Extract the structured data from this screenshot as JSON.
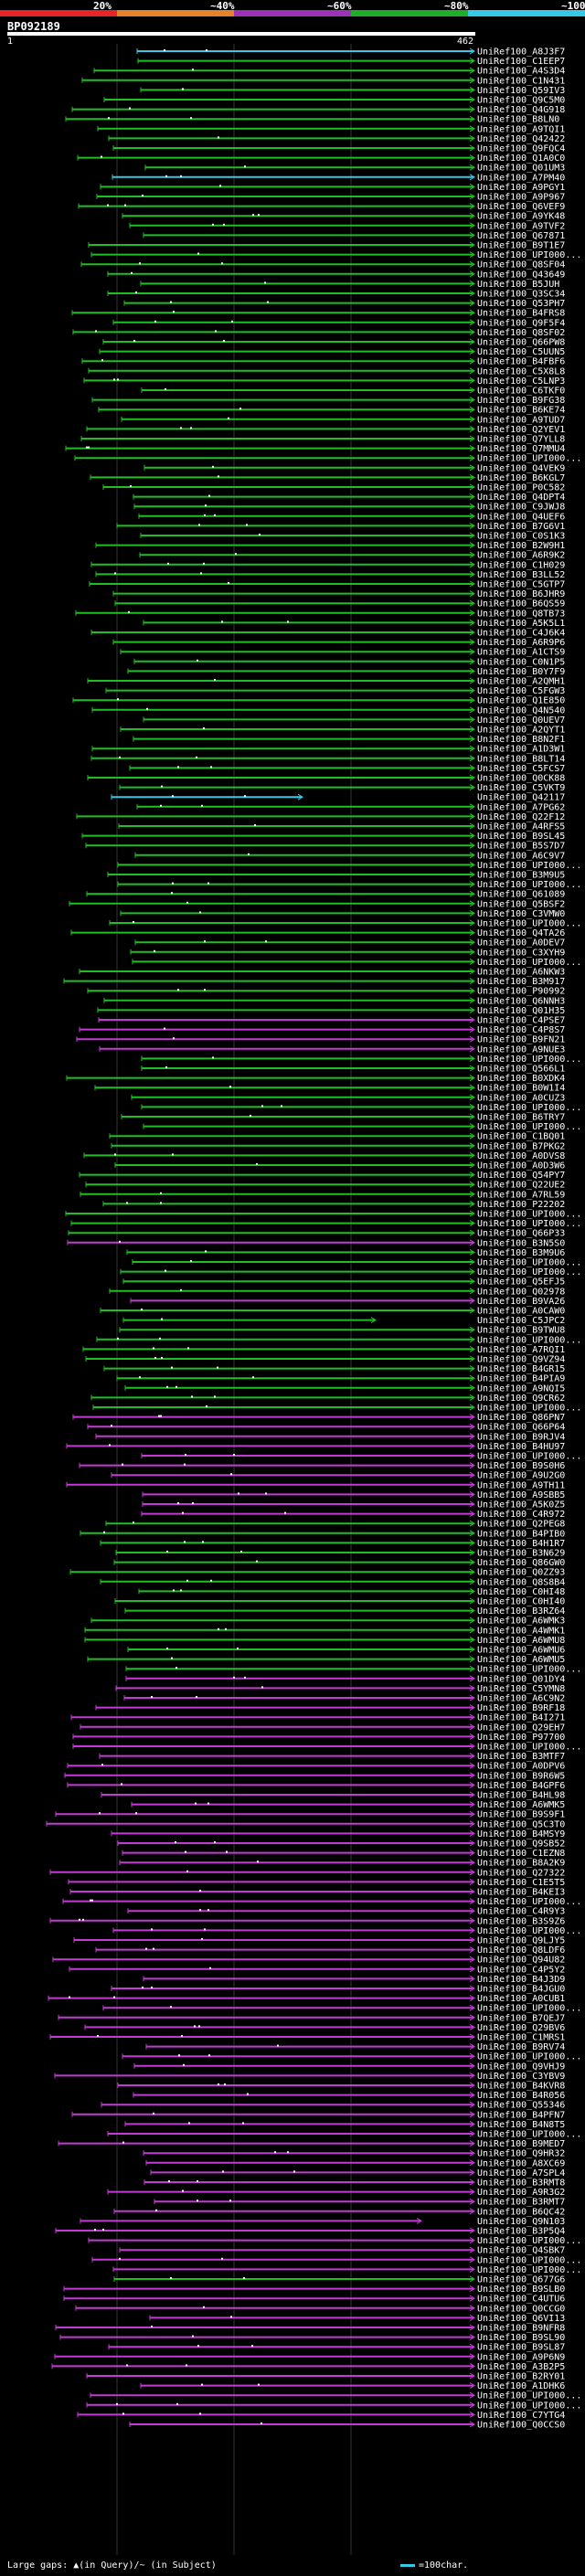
{
  "query": {
    "id": "BP092189",
    "start": "1",
    "end": "462"
  },
  "scale": {
    "ticks": [
      "20%",
      "~40%",
      "~60%",
      "~80%",
      "~100%"
    ],
    "bands": [
      {
        "color": "#e8232a"
      },
      {
        "color": "#e6822a"
      },
      {
        "color": "#9b32b9"
      },
      {
        "color": "#1fae2a"
      },
      {
        "color": "#36c9e6"
      }
    ]
  },
  "colors": {
    "cyan": "#36c9e6",
    "green": "#1fbf23",
    "magenta": "#c33bd4"
  },
  "legend": {
    "gap_text": "Large gaps: ▲(in Query)/~ (in Subject)",
    "scale_text": "=100char."
  },
  "hits": [
    {
      "label": "UniRef100_A8J3F7",
      "color": "cyan"
    },
    {
      "label": "UniRef100_C1EEP7",
      "color": "green"
    },
    {
      "label": "UniRef100_A4S3D4",
      "color": "green"
    },
    {
      "label": "UniRef100_C1N431",
      "color": "green"
    },
    {
      "label": "UniRef100_Q59IV3",
      "color": "green"
    },
    {
      "label": "UniRef100_Q9C5M0",
      "color": "green"
    },
    {
      "label": "UniRef100_Q4G918",
      "color": "green"
    },
    {
      "label": "UniRef100_B8LN0",
      "color": "green"
    },
    {
      "label": "UniRef100_A9TQI1",
      "color": "green"
    },
    {
      "label": "UniRef100_Q42422",
      "color": "green"
    },
    {
      "label": "UniRef100_Q9FQC4",
      "color": "green"
    },
    {
      "label": "UniRef100_Q1A0C0",
      "color": "green"
    },
    {
      "label": "UniRef100_Q01UM3",
      "color": "green"
    },
    {
      "label": "UniRef100_A7PM40",
      "color": "cyan"
    },
    {
      "label": "UniRef100_A9PGY1",
      "color": "green"
    },
    {
      "label": "UniRef100_A9P967",
      "color": "green"
    },
    {
      "label": "UniRef100_Q6VEF9",
      "color": "green"
    },
    {
      "label": "UniRef100_A9YK48",
      "color": "green"
    },
    {
      "label": "UniRef100_A9TVF2",
      "color": "green"
    },
    {
      "label": "UniRef100_Q67871",
      "color": "green"
    },
    {
      "label": "UniRef100_B9T1E7",
      "color": "green"
    },
    {
      "label": "UniRef100_UPI000...",
      "color": "green"
    },
    {
      "label": "UniRef100_Q8SF04",
      "color": "green"
    },
    {
      "label": "UniRef100_Q43649",
      "color": "green"
    },
    {
      "label": "UniRef100_B5JUH",
      "color": "green"
    },
    {
      "label": "UniRef100_Q3SC34",
      "color": "green"
    },
    {
      "label": "UniRef100_Q53PH7",
      "color": "green"
    },
    {
      "label": "UniRef100_B4FRS8",
      "color": "green"
    },
    {
      "label": "UniRef100_Q9F5F4",
      "color": "green"
    },
    {
      "label": "UniRef100_Q8SF02",
      "color": "green"
    },
    {
      "label": "UniRef100_Q66PW8",
      "color": "green"
    },
    {
      "label": "UniRef100_C5UUN5",
      "color": "green"
    },
    {
      "label": "UniRef100_B4FBF6",
      "color": "green"
    },
    {
      "label": "UniRef100_C5X8L8",
      "color": "green"
    },
    {
      "label": "UniRef100_C5LNP3",
      "color": "green"
    },
    {
      "label": "UniRef100_C6TKF0",
      "color": "green"
    },
    {
      "label": "UniRef100_B9FG38",
      "color": "green"
    },
    {
      "label": "UniRef100_B6KE74",
      "color": "green"
    },
    {
      "label": "UniRef100_A9TUD7",
      "color": "green"
    },
    {
      "label": "UniRef100_Q2YEV1",
      "color": "green"
    },
    {
      "label": "UniRef100_Q7YLL8",
      "color": "green"
    },
    {
      "label": "UniRef100_Q7MMU4",
      "color": "green"
    },
    {
      "label": "UniRef100_UPI000...",
      "color": "green"
    },
    {
      "label": "UniRef100_Q4VEK9",
      "color": "green"
    },
    {
      "label": "UniRef100_B6KGL7",
      "color": "green"
    },
    {
      "label": "UniRef100_P0C582",
      "color": "green"
    },
    {
      "label": "UniRef100_Q4DPT4",
      "color": "green"
    },
    {
      "label": "UniRef100_C9JWJ8",
      "color": "green"
    },
    {
      "label": "UniRef100_Q4UEF6",
      "color": "green"
    },
    {
      "label": "UniRef100_B7G6V1",
      "color": "green"
    },
    {
      "label": "UniRef100_C0S1K3",
      "color": "green"
    },
    {
      "label": "UniRef100_B2W9H1",
      "color": "green"
    },
    {
      "label": "UniRef100_A6R9K2",
      "color": "green"
    },
    {
      "label": "UniRef100_C1H029",
      "color": "green"
    },
    {
      "label": "UniRef100_B3LL52",
      "color": "green"
    },
    {
      "label": "UniRef100_C5GTP7",
      "color": "green"
    },
    {
      "label": "UniRef100_B6JHR9",
      "color": "green"
    },
    {
      "label": "UniRef100_B6QS59",
      "color": "green"
    },
    {
      "label": "UniRef100_Q8TB73",
      "color": "green"
    },
    {
      "label": "UniRef100_A5K5L1",
      "color": "green"
    },
    {
      "label": "UniRef100_C4J6K4",
      "color": "green"
    },
    {
      "label": "UniRef100_A6R9P6",
      "color": "green"
    },
    {
      "label": "UniRef100_A1CTS9",
      "color": "green"
    },
    {
      "label": "UniRef100_C0N1P5",
      "color": "green"
    },
    {
      "label": "UniRef100_B0Y7F9",
      "color": "green"
    },
    {
      "label": "UniRef100_A2QMH1",
      "color": "green"
    },
    {
      "label": "UniRef100_C5FGW3",
      "color": "green"
    },
    {
      "label": "UniRef100_Q1E850",
      "color": "green"
    },
    {
      "label": "UniRef100_Q4N540",
      "color": "green"
    },
    {
      "label": "UniRef100_Q0UEV7",
      "color": "green"
    },
    {
      "label": "UniRef100_A2QYT1",
      "color": "green"
    },
    {
      "label": "UniRef100_B8N2F1",
      "color": "green"
    },
    {
      "label": "UniRef100_A1D3W1",
      "color": "green"
    },
    {
      "label": "UniRef100_B8LT14",
      "color": "green"
    },
    {
      "label": "UniRef100_C5FCS7",
      "color": "green"
    },
    {
      "label": "UniRef100_Q0CK88",
      "color": "green"
    },
    {
      "label": "UniRef100_C5VKT9",
      "color": "green"
    },
    {
      "label": "UniRef100_Q42117",
      "color": "cyan"
    },
    {
      "label": "UniRef100_A7PG62",
      "color": "green"
    },
    {
      "label": "UniRef100_Q22F12",
      "color": "green"
    },
    {
      "label": "UniRef100_A4RFS5",
      "color": "green"
    },
    {
      "label": "UniRef100_B9SL45",
      "color": "green"
    },
    {
      "label": "UniRef100_B5S7D7",
      "color": "green"
    },
    {
      "label": "UniRef100_A6C9V7",
      "color": "green"
    },
    {
      "label": "UniRef100_UPI000...",
      "color": "green"
    },
    {
      "label": "UniRef100_B3M9U5",
      "color": "green"
    },
    {
      "label": "UniRef100_UPI000...",
      "color": "green"
    },
    {
      "label": "UniRef100_Q61089",
      "color": "green"
    },
    {
      "label": "UniRef100_Q5BSF2",
      "color": "green"
    },
    {
      "label": "UniRef100_C3VMW0",
      "color": "green"
    },
    {
      "label": "UniRef100_UPI000...",
      "color": "green"
    },
    {
      "label": "UniRef100_Q4TA26",
      "color": "green"
    },
    {
      "label": "UniRef100_A0DEV7",
      "color": "green"
    },
    {
      "label": "UniRef100_C3XYH9",
      "color": "green"
    },
    {
      "label": "UniRef100_UPI000...",
      "color": "green"
    },
    {
      "label": "UniRef100_A6NKW3",
      "color": "green"
    },
    {
      "label": "UniRef100_B3M917",
      "color": "green"
    },
    {
      "label": "UniRef100_P90992",
      "color": "green"
    },
    {
      "label": "UniRef100_Q6NNH3",
      "color": "green"
    },
    {
      "label": "UniRef100_Q01H35",
      "color": "green"
    },
    {
      "label": "UniRef100_C4PSE7",
      "color": "magenta"
    },
    {
      "label": "UniRef100_C4P8S7",
      "color": "magenta"
    },
    {
      "label": "UniRef100_B9FN21",
      "color": "magenta"
    },
    {
      "label": "UniRef100_A9NUE3",
      "color": "magenta"
    },
    {
      "label": "UniRef100_UPI000...",
      "color": "green"
    },
    {
      "label": "UniRef100_Q566L1",
      "color": "green"
    },
    {
      "label": "UniRef100_B0XDK4",
      "color": "green"
    },
    {
      "label": "UniRef100_B0W1I4",
      "color": "green"
    },
    {
      "label": "UniRef100_A0CUZ3",
      "color": "green"
    },
    {
      "label": "UniRef100_UPI000...",
      "color": "green"
    },
    {
      "label": "UniRef100_B6TRY7",
      "color": "green"
    },
    {
      "label": "UniRef100_UPI000...",
      "color": "green"
    },
    {
      "label": "UniRef100_C1BQ01",
      "color": "green"
    },
    {
      "label": "UniRef100_B7PKG2",
      "color": "green"
    },
    {
      "label": "UniRef100_A0DVS8",
      "color": "green"
    },
    {
      "label": "UniRef100_A0D3W6",
      "color": "green"
    },
    {
      "label": "UniRef100_Q54PY7",
      "color": "green"
    },
    {
      "label": "UniRef100_Q22UE2",
      "color": "green"
    },
    {
      "label": "UniRef100_A7RL59",
      "color": "green"
    },
    {
      "label": "UniRef100_P22202",
      "color": "green"
    },
    {
      "label": "UniRef100_UPI000...",
      "color": "green"
    },
    {
      "label": "UniRef100_UPI000...",
      "color": "green"
    },
    {
      "label": "UniRef100_Q66P33",
      "color": "green"
    },
    {
      "label": "UniRef100_B3N5S0",
      "color": "magenta"
    },
    {
      "label": "UniRef100_B3M9U6",
      "color": "green"
    },
    {
      "label": "UniRef100_UPI000...",
      "color": "green"
    },
    {
      "label": "UniRef100_UPI000...",
      "color": "green"
    },
    {
      "label": "UniRef100_Q5EFJ5",
      "color": "green"
    },
    {
      "label": "UniRef100_Q02978",
      "color": "green"
    },
    {
      "label": "UniRef100_B9VA26",
      "color": "magenta"
    },
    {
      "label": "UniRef100_A0CAW0",
      "color": "green"
    },
    {
      "label": "UniRef100_C5JPC2",
      "color": "green"
    },
    {
      "label": "UniRef100_B9TWU8",
      "color": "green"
    },
    {
      "label": "UniRef100_UPI000...",
      "color": "green"
    },
    {
      "label": "UniRef100_A7RQI1",
      "color": "green"
    },
    {
      "label": "UniRef100_Q9VZ94",
      "color": "green"
    },
    {
      "label": "UniRef100_B4GR15",
      "color": "green"
    },
    {
      "label": "UniRef100_B4PIA9",
      "color": "green"
    },
    {
      "label": "UniRef100_A9NQI5",
      "color": "green"
    },
    {
      "label": "UniRef100_Q9CR62",
      "color": "green"
    },
    {
      "label": "UniRef100_UPI000...",
      "color": "green"
    },
    {
      "label": "UniRef100_Q86PN7",
      "color": "magenta"
    },
    {
      "label": "UniRef100_Q66P64",
      "color": "magenta"
    },
    {
      "label": "UniRef100_B9RJV4",
      "color": "magenta"
    },
    {
      "label": "UniRef100_B4HU97",
      "color": "magenta"
    },
    {
      "label": "UniRef100_UPI000...",
      "color": "magenta"
    },
    {
      "label": "UniRef100_B9S0H6",
      "color": "magenta"
    },
    {
      "label": "UniRef100_A9U2G0",
      "color": "magenta"
    },
    {
      "label": "UniRef100_A9TH11",
      "color": "magenta"
    },
    {
      "label": "UniRef100_A9SBB5",
      "color": "magenta"
    },
    {
      "label": "UniRef100_A5K0Z5",
      "color": "magenta"
    },
    {
      "label": "UniRef100_C4R972",
      "color": "magenta"
    },
    {
      "label": "UniRef100_Q2PEG8",
      "color": "green"
    },
    {
      "label": "UniRef100_B4PIB0",
      "color": "green"
    },
    {
      "label": "UniRef100_B4H1R7",
      "color": "green"
    },
    {
      "label": "UniRef100_B3N629",
      "color": "green"
    },
    {
      "label": "UniRef100_Q86GW0",
      "color": "green"
    },
    {
      "label": "UniRef100_Q0ZZ93",
      "color": "green"
    },
    {
      "label": "UniRef100_Q8S8B4",
      "color": "green"
    },
    {
      "label": "UniRef100_C0HI48",
      "color": "green"
    },
    {
      "label": "UniRef100_C0HI40",
      "color": "green"
    },
    {
      "label": "UniRef100_B3RZ64",
      "color": "green"
    },
    {
      "label": "UniRef100_A6WMK3",
      "color": "green"
    },
    {
      "label": "UniRef100_A4WMK1",
      "color": "green"
    },
    {
      "label": "UniRef100_A6WMU8",
      "color": "green"
    },
    {
      "label": "UniRef100_A6WMU6",
      "color": "green"
    },
    {
      "label": "UniRef100_A6WMU5",
      "color": "green"
    },
    {
      "label": "UniRef100_UPI000...",
      "color": "green"
    },
    {
      "label": "UniRef100_Q01DY4",
      "color": "magenta"
    },
    {
      "label": "UniRef100_C5YMN8",
      "color": "magenta"
    },
    {
      "label": "UniRef100_A6C9N2",
      "color": "magenta"
    },
    {
      "label": "UniRef100_B9RF18",
      "color": "magenta"
    },
    {
      "label": "UniRef100_B4I271",
      "color": "magenta"
    },
    {
      "label": "UniRef100_Q29EH7",
      "color": "magenta"
    },
    {
      "label": "UniRef100_P97700",
      "color": "magenta"
    },
    {
      "label": "UniRef100_UPI000...",
      "color": "magenta"
    },
    {
      "label": "UniRef100_B3MTF7",
      "color": "magenta"
    },
    {
      "label": "UniRef100_A0DPV6",
      "color": "magenta"
    },
    {
      "label": "UniRef100_B9R6W5",
      "color": "magenta"
    },
    {
      "label": "UniRef100_B4GPF6",
      "color": "magenta"
    },
    {
      "label": "UniRef100_B4HL98",
      "color": "magenta"
    },
    {
      "label": "UniRef100_A6WMK5",
      "color": "magenta"
    },
    {
      "label": "UniRef100_B9S9F1",
      "color": "magenta"
    },
    {
      "label": "UniRef100_Q5C3T0",
      "color": "magenta"
    },
    {
      "label": "UniRef100_B4MSY9",
      "color": "magenta"
    },
    {
      "label": "UniRef100_Q9SB52",
      "color": "magenta"
    },
    {
      "label": "UniRef100_C1EZN8",
      "color": "magenta"
    },
    {
      "label": "UniRef100_B8A2K9",
      "color": "magenta"
    },
    {
      "label": "UniRef100_Q27322",
      "color": "magenta"
    },
    {
      "label": "UniRef100_C1E5T5",
      "color": "magenta"
    },
    {
      "label": "UniRef100_B4KEI3",
      "color": "magenta"
    },
    {
      "label": "UniRef100_UPI000...",
      "color": "magenta"
    },
    {
      "label": "UniRef100_C4R9Y3",
      "color": "magenta"
    },
    {
      "label": "UniRef100_B3S9Z6",
      "color": "magenta"
    },
    {
      "label": "UniRef100_UPI000...",
      "color": "magenta"
    },
    {
      "label": "UniRef100_Q9LJY5",
      "color": "magenta"
    },
    {
      "label": "UniRef100_Q8LDF6",
      "color": "magenta"
    },
    {
      "label": "UniRef100_Q94U82",
      "color": "magenta"
    },
    {
      "label": "UniRef100_C4P5Y2",
      "color": "magenta"
    },
    {
      "label": "UniRef100_B4J3D9",
      "color": "magenta"
    },
    {
      "label": "UniRef100_B4JGU0",
      "color": "magenta"
    },
    {
      "label": "UniRef100_A0CUB1",
      "color": "magenta"
    },
    {
      "label": "UniRef100_UPI000...",
      "color": "magenta"
    },
    {
      "label": "UniRef100_B7QEJ7",
      "color": "magenta"
    },
    {
      "label": "UniRef100_Q29BV6",
      "color": "magenta"
    },
    {
      "label": "UniRef100_C1MRS1",
      "color": "magenta"
    },
    {
      "label": "UniRef100_B9RV74",
      "color": "magenta"
    },
    {
      "label": "UniRef100_UPI000...",
      "color": "magenta"
    },
    {
      "label": "UniRef100_Q9VHJ9",
      "color": "magenta"
    },
    {
      "label": "UniRef100_C3YBV9",
      "color": "magenta"
    },
    {
      "label": "UniRef100_B4KVR8",
      "color": "magenta"
    },
    {
      "label": "UniRef100_B4R056",
      "color": "magenta"
    },
    {
      "label": "UniRef100_Q55346",
      "color": "magenta"
    },
    {
      "label": "UniRef100_B4PFN7",
      "color": "magenta"
    },
    {
      "label": "UniRef100_B4N8T5",
      "color": "magenta"
    },
    {
      "label": "UniRef100_UPI000...",
      "color": "magenta"
    },
    {
      "label": "UniRef100_B9MED7",
      "color": "magenta"
    },
    {
      "label": "UniRef100_Q9HR32",
      "color": "magenta"
    },
    {
      "label": "UniRef100_A8XC69",
      "color": "magenta"
    },
    {
      "label": "UniRef100_A7SPL4",
      "color": "magenta"
    },
    {
      "label": "UniRef100_B3RMT8",
      "color": "magenta"
    },
    {
      "label": "UniRef100_A9R3G2",
      "color": "magenta"
    },
    {
      "label": "UniRef100_B3RMT7",
      "color": "magenta"
    },
    {
      "label": "UniRef100_B6QC42",
      "color": "magenta"
    },
    {
      "label": "UniRef100_Q9N103",
      "color": "magenta"
    },
    {
      "label": "UniRef100_B3P5Q4",
      "color": "magenta"
    },
    {
      "label": "UniRef100_UPI000...",
      "color": "magenta"
    },
    {
      "label": "UniRef100_Q4SBK7",
      "color": "magenta"
    },
    {
      "label": "UniRef100_UPI000...",
      "color": "magenta"
    },
    {
      "label": "UniRef100_UPI000...",
      "color": "magenta"
    },
    {
      "label": "UniRef100_Q677G6",
      "color": "green"
    },
    {
      "label": "UniRef100_B9SLB0",
      "color": "magenta"
    },
    {
      "label": "UniRef100_C4UTU6",
      "color": "magenta"
    },
    {
      "label": "UniRef100_Q0CCG0",
      "color": "magenta"
    },
    {
      "label": "UniRef100_Q6VI13",
      "color": "magenta"
    },
    {
      "label": "UniRef100_B9NFR8",
      "color": "magenta"
    },
    {
      "label": "UniRef100_B9SL90",
      "color": "magenta"
    },
    {
      "label": "UniRef100_B9SL87",
      "color": "magenta"
    },
    {
      "label": "UniRef100_A9P6N9",
      "color": "magenta"
    },
    {
      "label": "UniRef100_A3B2P5",
      "color": "magenta"
    },
    {
      "label": "UniRef100_B2RY01",
      "color": "magenta"
    },
    {
      "label": "UniRef100_A1DHK6",
      "color": "magenta"
    },
    {
      "label": "UniRef100_UPI000...",
      "color": "magenta"
    },
    {
      "label": "UniRef100_UPI000...",
      "color": "magenta"
    },
    {
      "label": "UniRef100_C7YTG4",
      "color": "magenta"
    },
    {
      "label": "UniRef100_Q0CCS0",
      "color": "magenta"
    }
  ]
}
